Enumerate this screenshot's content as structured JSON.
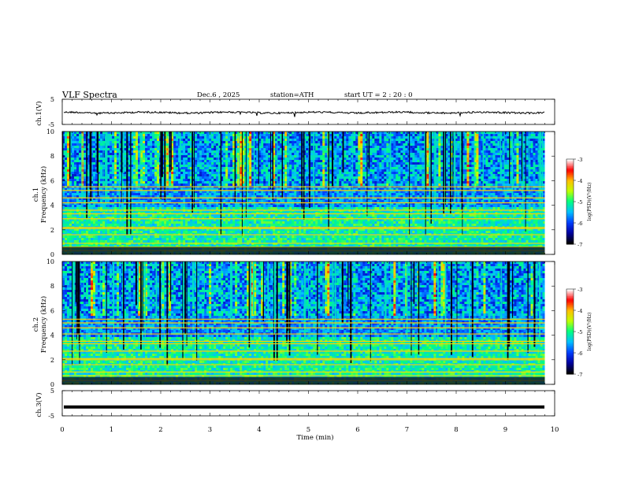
{
  "chart_data": {
    "type": "heatmap",
    "title": "VLF  Spectra",
    "date": "Dec.6  , 2025",
    "station": "station=ATH",
    "start": "start  UT  =   2  : 20 : 0",
    "xlabel": "Time  (min)",
    "xlim": [
      0,
      10
    ],
    "x_ticks": [
      "0",
      "1",
      "2",
      "3",
      "4",
      "5",
      "6",
      "7",
      "8",
      "9",
      "10"
    ],
    "panels": [
      {
        "kind": "waveform",
        "ylabel": "ch.1(V)",
        "ylim": [
          -5,
          5
        ],
        "y_ticks": [
          "5",
          "-5"
        ],
        "baseline": -0.3
      },
      {
        "kind": "spectrogram",
        "ylabel": "ch.1",
        "ylabel2": "Frequency  (kHz)",
        "ylim": [
          0,
          10
        ],
        "y_ticks": [
          "0",
          "2",
          "4",
          "6",
          "8",
          "10"
        ],
        "lines_khz": [
          0.3,
          0.6,
          0.9,
          1.6,
          2.1,
          2.2,
          2.9,
          3.3,
          3.6,
          4.2,
          4.6,
          5.2,
          5.5
        ],
        "colorbar": {
          "label": "log(PSD)(V²/Hz)",
          "ticks": [
            "-3",
            "-4",
            "-5",
            "-6",
            "-7"
          ],
          "range": [
            -7,
            -3
          ]
        }
      },
      {
        "kind": "spectrogram",
        "ylabel": "ch.2",
        "ylabel2": "Frequency  (kHz)",
        "ylim": [
          0,
          10
        ],
        "y_ticks": [
          "0",
          "2",
          "4",
          "6",
          "8",
          "10"
        ],
        "lines_khz": [
          0.3,
          0.7,
          1.0,
          1.6,
          2.0,
          2.1,
          2.7,
          3.3,
          3.5,
          4.1,
          4.6,
          5.0,
          5.3
        ],
        "colorbar": {
          "label": "log(PSD)(V²/Hz)",
          "ticks": [
            "-3",
            "-4",
            "-5",
            "-6",
            "-7"
          ],
          "range": [
            -7,
            -3
          ]
        }
      },
      {
        "kind": "waveform",
        "ylabel": "ch.3(V)",
        "ylim": [
          -5,
          5
        ],
        "y_ticks": [
          "5",
          "-5"
        ],
        "baseline": -1.5
      }
    ],
    "data_end_min": 9.8,
    "colormap": [
      "#000000",
      "#0000a0",
      "#0040ff",
      "#00c0ff",
      "#00ff80",
      "#c0ff00",
      "#ffc000",
      "#ff0000",
      "#ffffff"
    ]
  }
}
